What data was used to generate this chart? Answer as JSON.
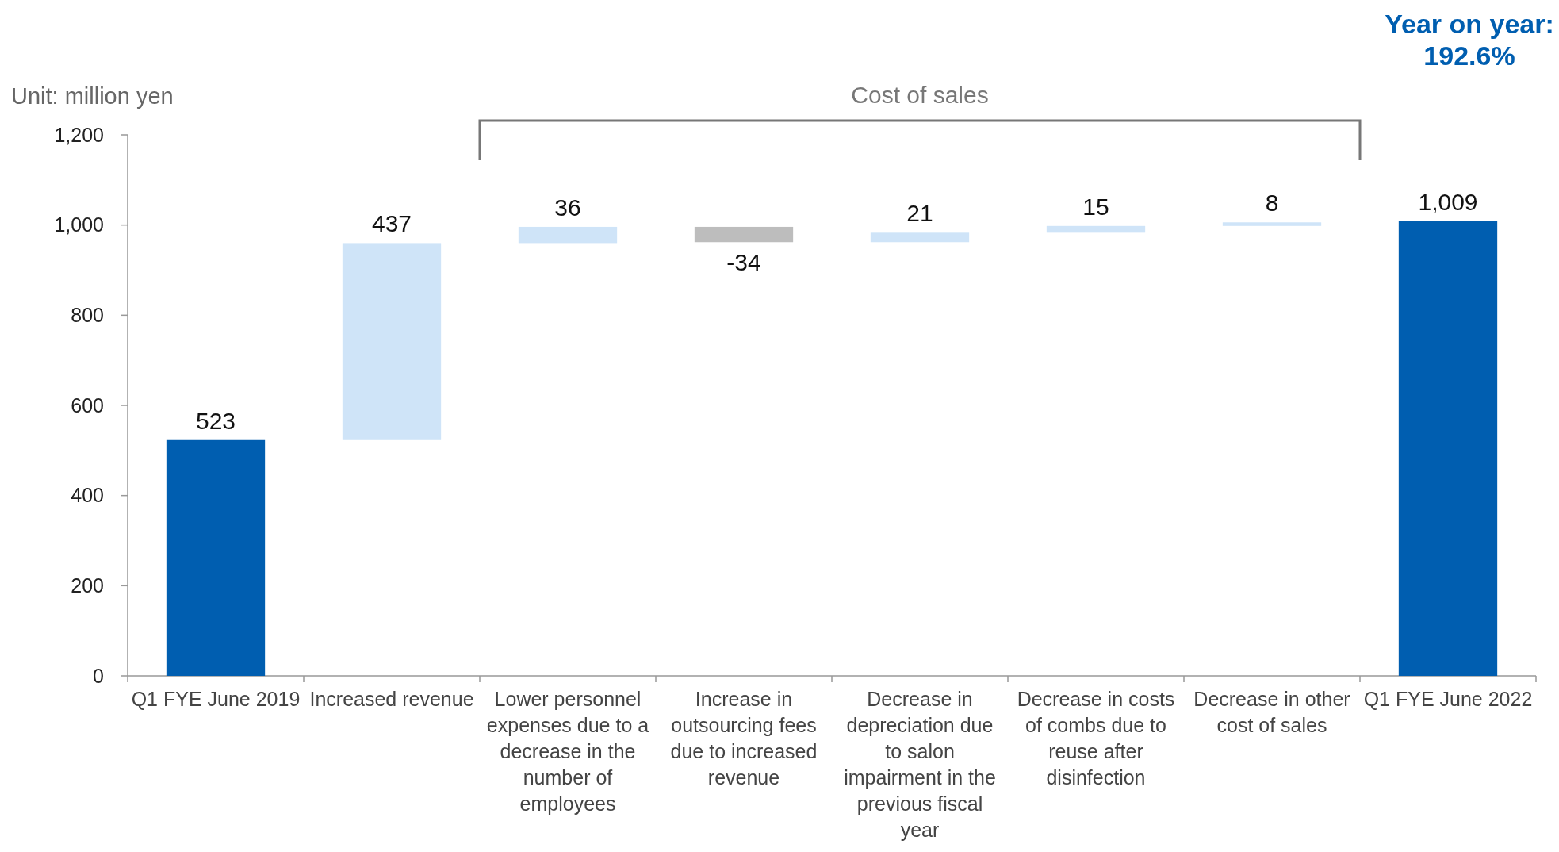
{
  "chart_data": {
    "type": "bar",
    "categories": [
      "Q1 FYE June 2019",
      "Increased revenue",
      "Lower personnel expenses due to a decrease in the number of employees",
      "Increase in outsourcing fees due to increased revenue",
      "Decrease in depreciation due to salon impairment in the previous fiscal year",
      "Decrease in costs of combs due to reuse after disinfection",
      "Decrease in other cost of sales",
      "Q1 FYE June 2022"
    ],
    "values": [
      523,
      437,
      36,
      -34,
      21,
      15,
      8,
      1009
    ],
    "base": [
      0,
      523,
      960,
      996,
      962,
      983,
      998,
      0
    ],
    "colors": [
      "#005eb0",
      "#cfe4f8",
      "#cfe4f8",
      "#bdbdbd",
      "#cfe4f8",
      "#cfe4f8",
      "#cfe4f8",
      "#005eb0"
    ],
    "value_labels": [
      "523",
      "437",
      "36",
      "-34",
      "21",
      "15",
      "8",
      "1,009"
    ],
    "ylim": [
      0,
      1200
    ],
    "yticks": [
      0,
      200,
      400,
      600,
      800,
      {
        "value": 1000,
        "label": "1,000"
      },
      {
        "value": 1200,
        "label": "1,200"
      }
    ],
    "grid": false,
    "annotations": [
      "Unit: million yen",
      "Cost of sales",
      "Year on year: 192.6%"
    ]
  }
}
